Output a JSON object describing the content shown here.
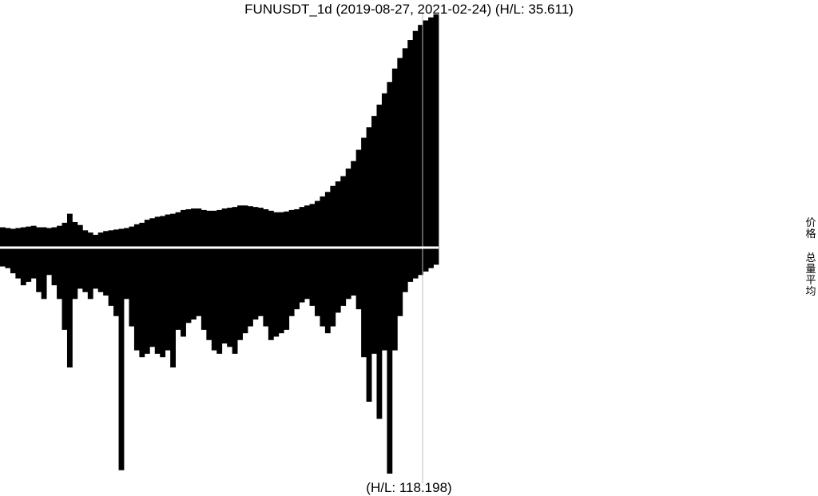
{
  "chart_data": {
    "type": "bar",
    "title": "FUNUSDT_1d (2019-08-27, 2021-02-24) (H/L: 35.611)",
    "bottom_label": "(H/L: 118.198)",
    "x_range": [
      "2019-08-27",
      "2021-02-24"
    ],
    "legend": [
      "价格",
      "总量平均"
    ],
    "colors": {
      "bars": "#000000",
      "marker": "#bbbbbb",
      "background": "#ffffff"
    },
    "series": [
      {
        "name": "价格",
        "values": [
          0.27,
          0.26,
          0.25,
          0.26,
          0.27,
          0.28,
          0.29,
          0.27,
          0.27,
          0.26,
          0.27,
          0.29,
          0.33,
          0.45,
          0.34,
          0.3,
          0.23,
          0.2,
          0.17,
          0.2,
          0.22,
          0.23,
          0.24,
          0.25,
          0.26,
          0.28,
          0.31,
          0.33,
          0.37,
          0.39,
          0.41,
          0.42,
          0.44,
          0.45,
          0.47,
          0.5,
          0.51,
          0.52,
          0.52,
          0.5,
          0.49,
          0.49,
          0.5,
          0.52,
          0.53,
          0.54,
          0.56,
          0.56,
          0.55,
          0.54,
          0.53,
          0.51,
          0.49,
          0.47,
          0.47,
          0.48,
          0.5,
          0.51,
          0.54,
          0.56,
          0.58,
          0.62,
          0.68,
          0.74,
          0.82,
          0.88,
          0.95,
          1.05,
          1.15,
          1.3,
          1.46,
          1.6,
          1.75,
          1.9,
          2.05,
          2.2,
          2.38,
          2.52,
          2.65,
          2.76,
          2.88,
          2.96,
          3.02,
          3.06,
          3.1
        ]
      },
      {
        "name": "总量平均",
        "values": [
          0.55,
          0.6,
          0.75,
          0.9,
          1.1,
          1.0,
          0.9,
          1.3,
          1.5,
          0.8,
          1.1,
          1.5,
          2.4,
          3.5,
          1.5,
          1.2,
          1.3,
          1.5,
          1.2,
          1.3,
          1.4,
          1.7,
          2.0,
          6.5,
          1.5,
          2.3,
          3.0,
          3.2,
          3.1,
          2.9,
          3.1,
          3.2,
          3.0,
          3.5,
          2.4,
          2.6,
          2.2,
          2.1,
          2.0,
          2.4,
          2.7,
          3.0,
          3.1,
          2.8,
          2.9,
          3.1,
          2.7,
          2.5,
          2.3,
          2.1,
          2.0,
          2.3,
          2.7,
          2.6,
          2.5,
          2.4,
          2.0,
          1.8,
          1.6,
          1.5,
          1.7,
          2.0,
          2.3,
          2.5,
          2.3,
          1.9,
          1.7,
          1.5,
          1.4,
          1.8,
          3.2,
          4.5,
          3.1,
          5.0,
          3.0,
          6.6,
          3.0,
          2.0,
          1.3,
          1.0,
          0.9,
          0.8,
          0.7,
          0.6,
          0.5
        ]
      }
    ]
  }
}
